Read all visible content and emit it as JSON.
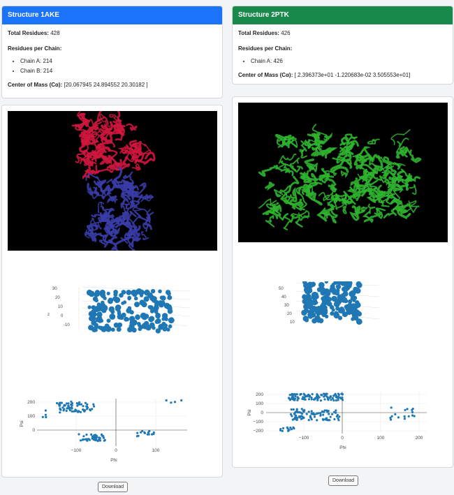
{
  "structures": [
    {
      "title": "Structure 1AKE",
      "header_color": "#1a73f8",
      "total_residues_label": "Total Residues:",
      "total_residues": "428",
      "residues_per_chain_label": "Residues per Chain:",
      "chains": [
        "Chain A: 214",
        "Chain B: 214"
      ],
      "com_label": "Center of Mass (Cα):",
      "com_value": "[20.067945 24.894552 20.30182 ]",
      "molecule_colors": [
        "#d0163e",
        "#3a3ca8"
      ],
      "download_label": "Download",
      "axis3d_label": "z",
      "axis3d_ticks": [
        "30",
        "20",
        "10",
        "0",
        "-10"
      ],
      "rama": {
        "xlabel": "Phi",
        "ylabel": "Psi",
        "xticks": [
          "−100",
          "0",
          "100"
        ],
        "yticks": [
          "200",
          "100",
          "0"
        ]
      }
    },
    {
      "title": "Structure 2PTK",
      "header_color": "#198a4c",
      "total_residues_label": "Total Residues:",
      "total_residues": "426",
      "residues_per_chain_label": "Residues per Chain:",
      "chains": [
        "Chain A: 426"
      ],
      "com_label": "Center of Mass (Cα):",
      "com_value": "[ 2.396373e+01 -1.220683e-02 3.505553e+01]",
      "molecule_colors": [
        "#2fb52f"
      ],
      "download_label": "Download",
      "axis3d_ticks": [
        "50",
        "40",
        "30",
        "20",
        "10"
      ],
      "rama": {
        "xlabel": "Phi",
        "ylabel": "Psi",
        "xticks": [
          "−100",
          "0",
          "100",
          "200"
        ],
        "yticks": [
          "200",
          "100",
          "0",
          "−100",
          "−200"
        ]
      }
    }
  ],
  "point_color": "#1f77b4"
}
